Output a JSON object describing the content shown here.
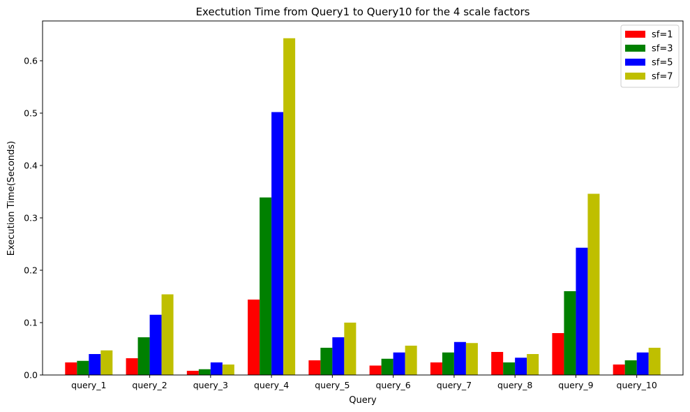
{
  "chart_data": {
    "type": "bar",
    "title": "Exectution Time from Query1 to Query10 for the 4 scale factors",
    "xlabel": "Query",
    "ylabel": "Execution Time(Seconds)",
    "categories": [
      "query_1",
      "query_2",
      "query_3",
      "query_4",
      "query_5",
      "query_6",
      "query_7",
      "query_8",
      "query_9",
      "query_10"
    ],
    "ylim": [
      0,
      0.676
    ],
    "yticks": [
      "0.0",
      "0.1",
      "0.2",
      "0.3",
      "0.4",
      "0.5",
      "0.6"
    ],
    "legend_position": "top-right",
    "grid": false,
    "series": [
      {
        "name": "sf=1",
        "color": "#ff0000",
        "values": [
          0.024,
          0.032,
          0.008,
          0.144,
          0.028,
          0.018,
          0.024,
          0.044,
          0.08,
          0.02
        ]
      },
      {
        "name": "sf=3",
        "color": "#008000",
        "values": [
          0.027,
          0.072,
          0.011,
          0.339,
          0.052,
          0.031,
          0.043,
          0.024,
          0.16,
          0.028
        ]
      },
      {
        "name": "sf=5",
        "color": "#0000ff",
        "values": [
          0.04,
          0.115,
          0.024,
          0.502,
          0.072,
          0.043,
          0.063,
          0.033,
          0.243,
          0.043
        ]
      },
      {
        "name": "sf=7",
        "color": "#bfbf00",
        "values": [
          0.047,
          0.154,
          0.02,
          0.643,
          0.1,
          0.056,
          0.061,
          0.04,
          0.346,
          0.052
        ]
      }
    ]
  }
}
